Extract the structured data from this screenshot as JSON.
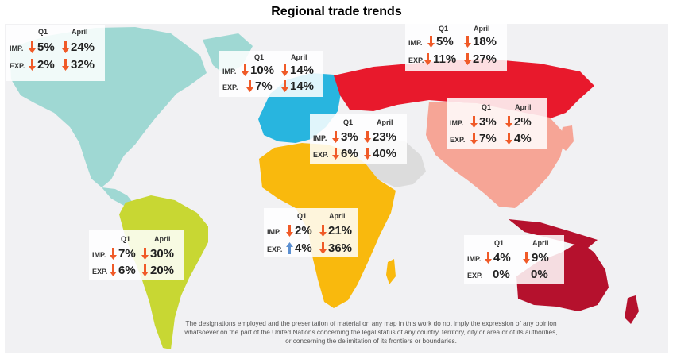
{
  "title": "Regional trade trends",
  "column_headers": [
    "Q1",
    "April"
  ],
  "row_labels": [
    "IMP.",
    "EXP."
  ],
  "regions": [
    {
      "id": "north-america",
      "color": "#9fd8d3",
      "imp": {
        "q1": {
          "dir": "down",
          "value": "5%"
        },
        "april": {
          "dir": "down",
          "value": "24%"
        }
      },
      "exp": {
        "q1": {
          "dir": "down",
          "value": "2%"
        },
        "april": {
          "dir": "down",
          "value": "32%"
        }
      }
    },
    {
      "id": "europe",
      "color": "#28b5df",
      "imp": {
        "q1": {
          "dir": "down",
          "value": "10%"
        },
        "april": {
          "dir": "down",
          "value": "14%"
        }
      },
      "exp": {
        "q1": {
          "dir": "down",
          "value": "7%"
        },
        "april": {
          "dir": "down",
          "value": "14%"
        }
      }
    },
    {
      "id": "cis",
      "color": "#e8192c",
      "imp": {
        "q1": {
          "dir": "down",
          "value": "5%"
        },
        "april": {
          "dir": "down",
          "value": "18%"
        }
      },
      "exp": {
        "q1": {
          "dir": "down",
          "value": "11%"
        },
        "april": {
          "dir": "down",
          "value": "27%"
        }
      }
    },
    {
      "id": "middle-east",
      "color": "#dcdcdc",
      "imp": {
        "q1": {
          "dir": "down",
          "value": "3%"
        },
        "april": {
          "dir": "down",
          "value": "23%"
        }
      },
      "exp": {
        "q1": {
          "dir": "down",
          "value": "6%"
        },
        "april": {
          "dir": "down",
          "value": "40%"
        }
      }
    },
    {
      "id": "asia",
      "color": "#f6a596",
      "imp": {
        "q1": {
          "dir": "down",
          "value": "3%"
        },
        "april": {
          "dir": "down",
          "value": "2%"
        }
      },
      "exp": {
        "q1": {
          "dir": "down",
          "value": "7%"
        },
        "april": {
          "dir": "down",
          "value": "4%"
        }
      }
    },
    {
      "id": "africa",
      "color": "#f9b90d",
      "imp": {
        "q1": {
          "dir": "down",
          "value": "2%"
        },
        "april": {
          "dir": "down",
          "value": "21%"
        }
      },
      "exp": {
        "q1": {
          "dir": "up",
          "value": "4%"
        },
        "april": {
          "dir": "down",
          "value": "36%"
        }
      }
    },
    {
      "id": "south-america",
      "color": "#c8d733",
      "imp": {
        "q1": {
          "dir": "down",
          "value": "7%"
        },
        "april": {
          "dir": "down",
          "value": "30%"
        }
      },
      "exp": {
        "q1": {
          "dir": "down",
          "value": "6%"
        },
        "april": {
          "dir": "down",
          "value": "20%"
        }
      }
    },
    {
      "id": "oceania",
      "color": "#b5112d",
      "imp": {
        "q1": {
          "dir": "down",
          "value": "4%"
        },
        "april": {
          "dir": "down",
          "value": "9%"
        }
      },
      "exp": {
        "q1": {
          "dir": "none",
          "value": "0%"
        },
        "april": {
          "dir": "none",
          "value": "0%"
        }
      }
    }
  ],
  "disclaimer": "The designations employed and the presentation of material on any map in this  work do not imply the expression of any opinion whatsoever on the part of the  United Nations concerning the legal status of any country, territory, city or area or of its authorities, or concerning the delimitation of its frontiers or boundaries."
}
